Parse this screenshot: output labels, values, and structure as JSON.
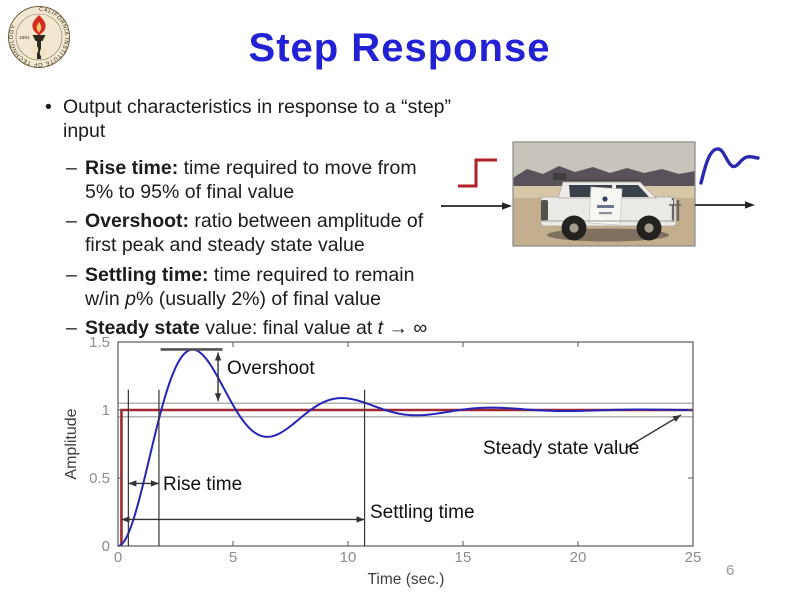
{
  "slide": {
    "title": "Step Response",
    "page_number": "6",
    "title_color": "#2222d4",
    "background": "#ffffff"
  },
  "logo": {
    "ring_text": "CALIFORNIA INSTITUTE OF TECHNOLOGY",
    "year": "1891",
    "seal_bg": "#f2e8cf",
    "flame_color": "#d42a20",
    "ring_text_color": "#3a3326"
  },
  "content": {
    "bullet_marker": "•",
    "main_bullet": "Output characteristics in response to a “step” input",
    "sub_marker": "–",
    "sub_bullets": [
      {
        "lines": [
          [
            {
              "b": "Rise time:"
            },
            {
              "t": " time required to move from"
            }
          ],
          [
            {
              "t": "5% to 95% of final value"
            }
          ]
        ]
      },
      {
        "lines": [
          [
            {
              "b": "Overshoot:"
            },
            {
              "t": " ratio between amplitude of"
            }
          ],
          [
            {
              "t": "first peak and steady state value"
            }
          ]
        ]
      },
      {
        "lines": [
          [
            {
              "b": "Settling time:"
            },
            {
              "t": " time required to remain"
            }
          ],
          [
            {
              "t": "w/in "
            },
            {
              "i": "p"
            },
            {
              "t": "% (usually 2%) of final value"
            }
          ]
        ]
      },
      {
        "lines": [
          [
            {
              "b": "Steady state"
            },
            {
              "t": " value: final value at "
            },
            {
              "i": "t"
            },
            {
              "t": " → ∞"
            }
          ]
        ]
      }
    ]
  },
  "diagram": {
    "input_color": "#b22028",
    "output_color": "#2a2ab0",
    "arrow_color": "#222222",
    "photo_desc": "white off-road SUV on desert playa with mountains behind"
  },
  "chart_data": {
    "type": "line",
    "title": "",
    "xlabel": "Time (sec.)",
    "ylabel": "Amplitude",
    "xlim": [
      0,
      25
    ],
    "ylim": [
      0,
      1.5
    ],
    "xticks": [
      0,
      5,
      10,
      15,
      20,
      25
    ],
    "yticks": [
      0,
      0.5,
      1,
      1.5
    ],
    "grid": false,
    "legend": "none",
    "series": [
      {
        "name": "step input",
        "color": "#a02830",
        "points": [
          [
            0.15,
            0
          ],
          [
            0.15,
            1
          ],
          [
            25,
            1
          ]
        ]
      },
      {
        "name": "step response",
        "color": "#2525b8",
        "model": {
          "type": "second_order",
          "zeta": 0.25,
          "wn": 1.0,
          "t_end": 25,
          "dt": 0.08
        },
        "keypoints": [
          [
            0,
            0
          ],
          [
            1,
            0.39
          ],
          [
            1.78,
            0.95
          ],
          [
            3.24,
            1.44
          ],
          [
            5,
            1.04
          ],
          [
            6.5,
            0.8
          ],
          [
            8,
            0.95
          ],
          [
            9.7,
            1.09
          ],
          [
            12.8,
            0.96
          ],
          [
            16,
            1.02
          ],
          [
            20,
            0.99
          ],
          [
            25,
            1.0
          ]
        ]
      }
    ],
    "bands": {
      "color": "#999999",
      "upper": 1.05,
      "lower": 0.95
    },
    "markers": {
      "color": "#333333",
      "rise_start_t": 0.45,
      "rise_end_t": 1.78,
      "settle_t": 10.72,
      "marker_top_amp": 1.15,
      "peak_amp": 1.445,
      "peak_line_t": [
        1.85,
        4.55
      ],
      "overshoot_arrow_t": 4.35,
      "rise_arrow_amp": 0.46,
      "settle_arrow_amp": 0.195
    },
    "annotations": {
      "overshoot": "Overshoot",
      "rise_time": "Rise time",
      "settling_time": "Settling time",
      "steady_state": "Steady state value"
    },
    "tick_color": "#8c8c8c",
    "axis_color": "#5a5a5a",
    "label_color": "#3f3f3f"
  }
}
